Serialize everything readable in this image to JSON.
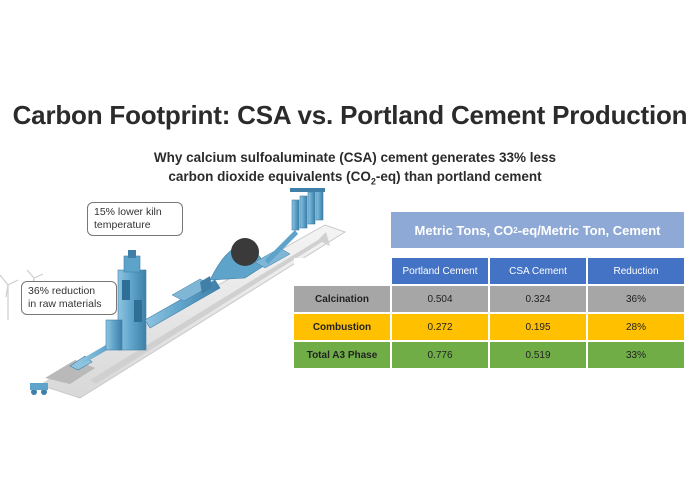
{
  "title": "Carbon Footprint: CSA vs. Portland Cement Production",
  "subtitle_line1": "Why calcium sulfoaluminate (CSA) cement generates 33% less",
  "subtitle_line2_a": "carbon dioxide equivalents (CO",
  "subtitle_line2_sub": "2",
  "subtitle_line2_b": "-eq) than portland cement",
  "callouts": {
    "kiln_line1": "15% lower kiln",
    "kiln_line2": "temperature",
    "raw_line1": "36% reduction",
    "raw_line2": "in raw materials"
  },
  "table": {
    "header_a": "Metric Tons, CO",
    "header_sub": "2",
    "header_b": "-eq/Metric Ton, Cement",
    "columns": [
      "Portland Cement",
      "CSA Cement",
      "Reduction"
    ],
    "rows": [
      {
        "label": "Calcination",
        "portland": "0.504",
        "csa": "0.324",
        "reduction": "36%"
      },
      {
        "label": "Combustion",
        "portland": "0.272",
        "csa": "0.195",
        "reduction": "28%"
      },
      {
        "label": "Total A3 Phase",
        "portland": "0.776",
        "csa": "0.519",
        "reduction": "33%"
      }
    ]
  },
  "colors": {
    "header": "#8ea9d6",
    "columns": "#4472c4",
    "calcination": "#a6a6a6",
    "combustion": "#ffc000",
    "total": "#70ad47",
    "plant": "#5ea3c9"
  }
}
